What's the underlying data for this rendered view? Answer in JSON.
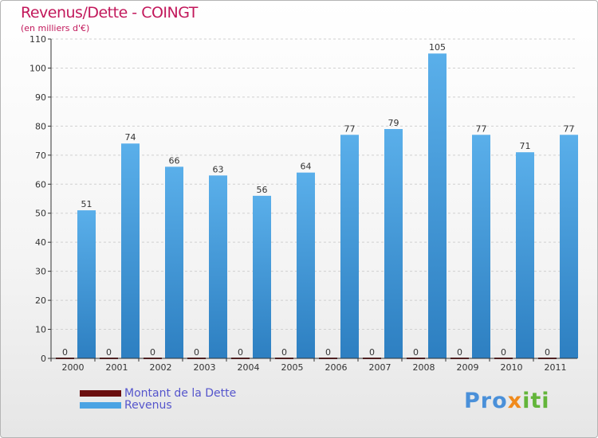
{
  "header": {
    "title": "Revenus/Dette - COINGT",
    "subtitle": "(en milliers d'€)"
  },
  "legend": {
    "debt_label": "Montant de la Dette",
    "revenue_label": "Revenus"
  },
  "logo": {
    "part1": "Pro",
    "part2": "x",
    "part3": "iti"
  },
  "colors": {
    "debt": "#6b0f0f",
    "revenue": "#4ba3e3",
    "revenue_dark": "#2d7fc1",
    "grid": "#d0d0d0",
    "axis": "#333333"
  },
  "chart_data": {
    "type": "bar",
    "title": "Revenus/Dette - COINGT",
    "subtitle": "(en milliers d'€)",
    "xlabel": "",
    "ylabel": "",
    "categories": [
      "2000",
      "2001",
      "2002",
      "2003",
      "2004",
      "2005",
      "2006",
      "2007",
      "2008",
      "2009",
      "2010",
      "2011"
    ],
    "series": [
      {
        "name": "Montant de la Dette",
        "values": [
          0,
          0,
          0,
          0,
          0,
          0,
          0,
          0,
          0,
          0,
          0,
          0
        ]
      },
      {
        "name": "Revenus",
        "values": [
          51,
          74,
          66,
          63,
          56,
          64,
          77,
          79,
          105,
          77,
          71,
          77
        ]
      }
    ],
    "ylim": [
      0,
      110
    ],
    "yticks": [
      0,
      10,
      20,
      30,
      40,
      50,
      60,
      70,
      80,
      90,
      100,
      110
    ],
    "grid": true,
    "legend_position": "bottom-left"
  }
}
